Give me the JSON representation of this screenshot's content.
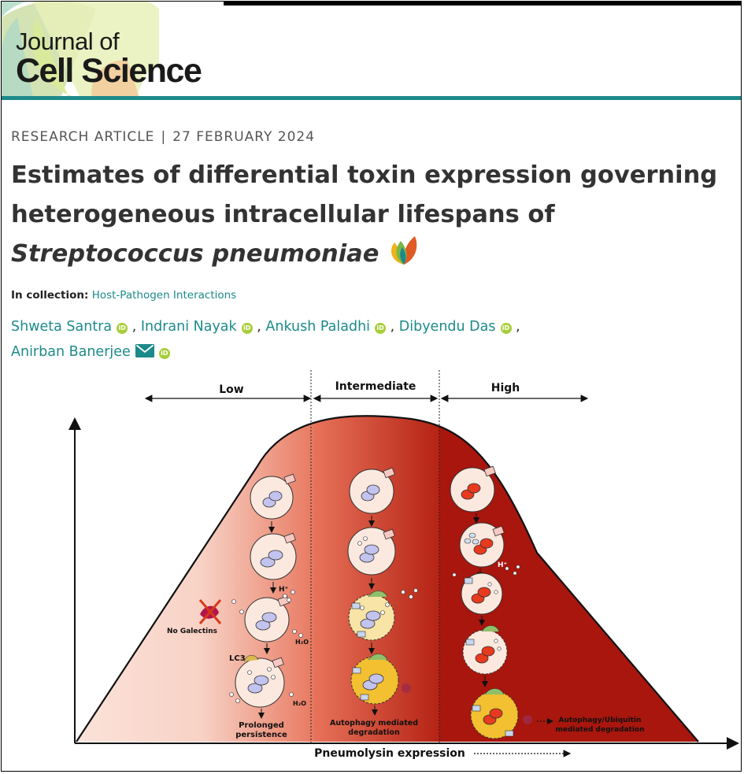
{
  "journal": {
    "line1": "Journal of",
    "line2": "Cell Science"
  },
  "article": {
    "type": "RESEARCH ARTICLE",
    "separator": "|",
    "date": "27 FEBRUARY 2024",
    "title_line1": "Estimates of differential toxin expression governing",
    "title_line2": "heterogeneous intracellular lifespans of",
    "title_species": "Streptococcus pneumoniae"
  },
  "collection": {
    "label": "In collection:",
    "link": "Host-Pathogen Interactions"
  },
  "authors": [
    {
      "name": "Shweta Santra"
    },
    {
      "name": "Indrani Nayak"
    },
    {
      "name": "Ankush Paladhi"
    },
    {
      "name": "Dibyendu Das"
    },
    {
      "name": "Anirban Banerjee"
    }
  ],
  "orcid_mark": "iD",
  "figure": {
    "regions": [
      "Low",
      "Intermediate",
      "High"
    ],
    "x_axis_label": "Pneumolysin expression",
    "labels": {
      "no_galectins": "No Galectins",
      "lc3": "LC3",
      "h_plus": "H⁺",
      "h2o": "H₂O",
      "prolonged": "Prolonged",
      "persistence": "persistence",
      "autophagy1": "Autophagy mediated",
      "degradation1": "degradation",
      "autophagy2": "Autophagy/Ubiquitin",
      "degradation2": "mediated degradation"
    }
  },
  "colors": {
    "teal": "#1c8a8a",
    "orcid": "#a6ce39",
    "dark_red": "#a8160e"
  }
}
